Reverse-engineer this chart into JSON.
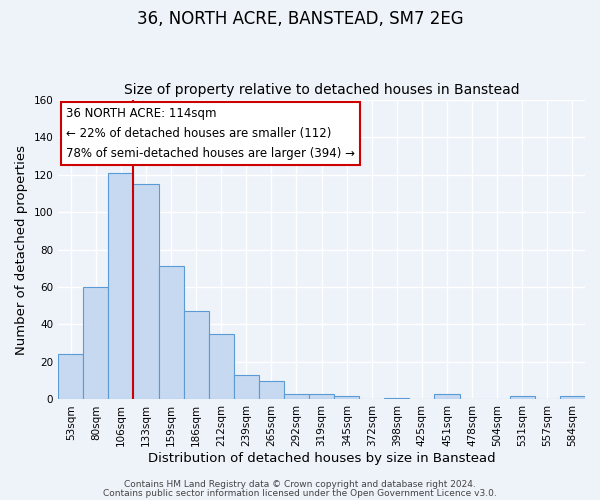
{
  "title": "36, NORTH ACRE, BANSTEAD, SM7 2EG",
  "subtitle": "Size of property relative to detached houses in Banstead",
  "xlabel": "Distribution of detached houses by size in Banstead",
  "ylabel": "Number of detached properties",
  "bar_labels": [
    "53sqm",
    "80sqm",
    "106sqm",
    "133sqm",
    "159sqm",
    "186sqm",
    "212sqm",
    "239sqm",
    "265sqm",
    "292sqm",
    "319sqm",
    "345sqm",
    "372sqm",
    "398sqm",
    "425sqm",
    "451sqm",
    "478sqm",
    "504sqm",
    "531sqm",
    "557sqm",
    "584sqm"
  ],
  "bar_values": [
    24,
    60,
    121,
    115,
    71,
    47,
    35,
    13,
    10,
    3,
    3,
    2,
    0,
    1,
    0,
    3,
    0,
    0,
    2,
    0,
    2
  ],
  "bar_color": "#c6d9f1",
  "bar_edge_color": "#5b9bd5",
  "vline_bar_index": 2,
  "vline_color": "#cc0000",
  "ylim": [
    0,
    160
  ],
  "yticks": [
    0,
    20,
    40,
    60,
    80,
    100,
    120,
    140,
    160
  ],
  "annotation_title": "36 NORTH ACRE: 114sqm",
  "annotation_line1": "← 22% of detached houses are smaller (112)",
  "annotation_line2": "78% of semi-detached houses are larger (394) →",
  "footer1": "Contains HM Land Registry data © Crown copyright and database right 2024.",
  "footer2": "Contains public sector information licensed under the Open Government Licence v3.0.",
  "background_color": "#eef2f9",
  "grid_color": "#ffffff",
  "title_fontsize": 12,
  "subtitle_fontsize": 10,
  "axis_label_fontsize": 9.5,
  "tick_fontsize": 7.5,
  "annotation_fontsize": 8.5,
  "footer_fontsize": 6.5
}
